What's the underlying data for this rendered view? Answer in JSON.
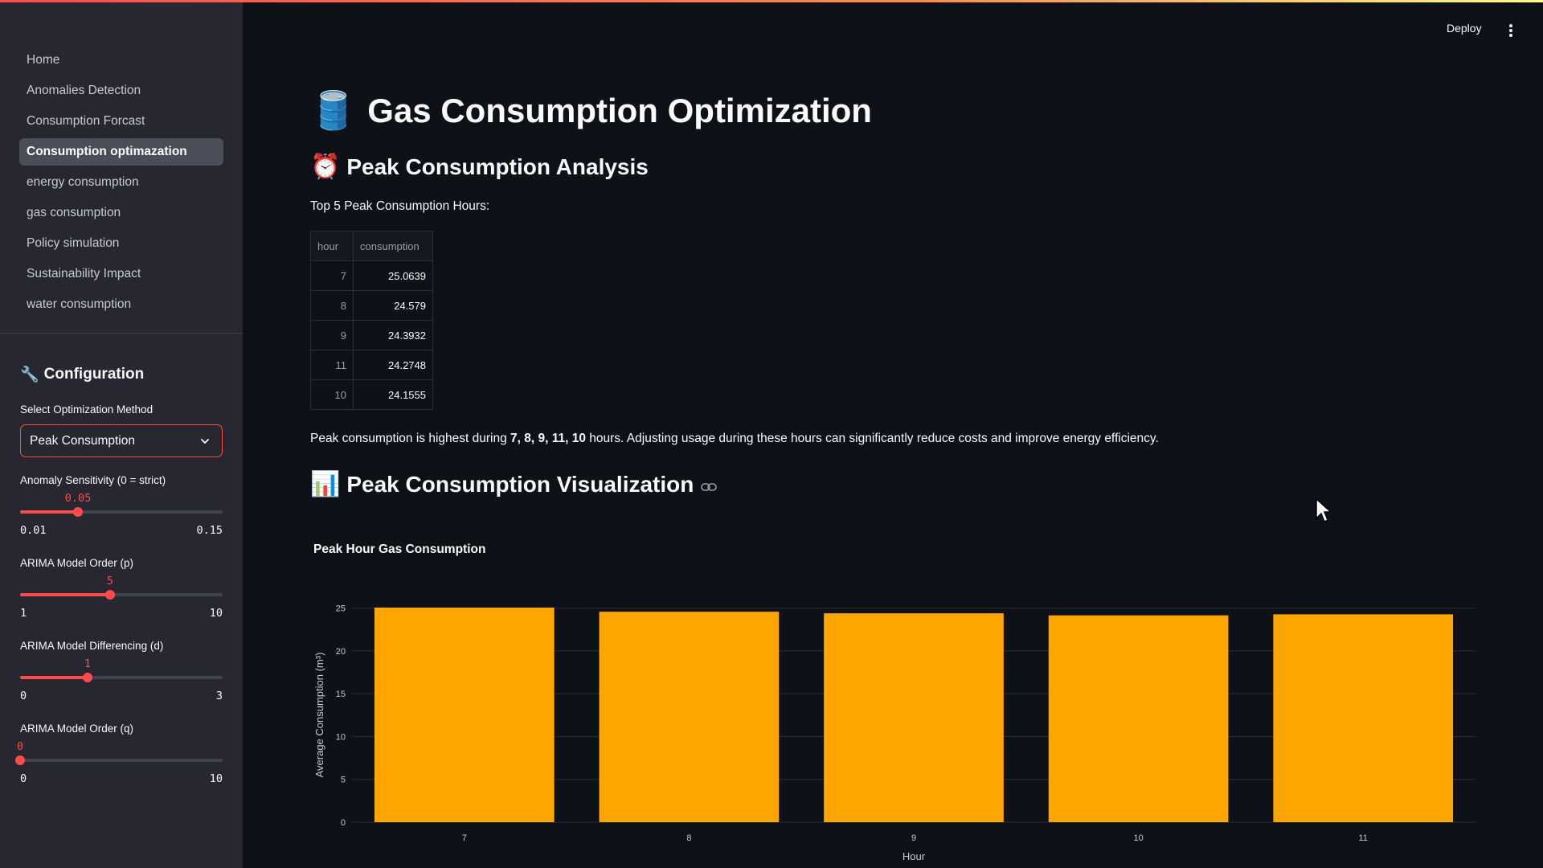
{
  "sidebar": {
    "nav": [
      {
        "label": "Home",
        "active": false
      },
      {
        "label": "Anomalies Detection",
        "active": false
      },
      {
        "label": "Consumption Forcast",
        "active": false
      },
      {
        "label": "Consumption optimazation",
        "active": true
      },
      {
        "label": "energy consumption",
        "active": false
      },
      {
        "label": "gas consumption",
        "active": false
      },
      {
        "label": "Policy simulation",
        "active": false
      },
      {
        "label": "Sustainability Impact",
        "active": false
      },
      {
        "label": "water consumption",
        "active": false
      }
    ],
    "config_title": "Configuration",
    "config_icon": "wrench-icon",
    "method_label": "Select Optimization Method",
    "method_value": "Peak Consumption",
    "sliders": [
      {
        "label": "Anomaly Sensitivity (0 = strict)",
        "value": "0.05",
        "min": "0.01",
        "max": "0.15",
        "fraction": 0.286
      },
      {
        "label": "ARIMA Model Order (p)",
        "value": "5",
        "min": "1",
        "max": "10",
        "fraction": 0.444
      },
      {
        "label": "ARIMA Model Differencing (d)",
        "value": "1",
        "min": "0",
        "max": "3",
        "fraction": 0.333
      },
      {
        "label": "ARIMA Model Order (q)",
        "value": "0",
        "min": "0",
        "max": "10",
        "fraction": 0.0
      }
    ]
  },
  "header": {
    "deploy_label": "Deploy",
    "menu_icon": "kebab-menu-icon"
  },
  "main": {
    "title": "Gas Consumption Optimization",
    "title_icon": "oil-barrel-icon",
    "section1_title": "Peak Consumption Analysis",
    "section1_icon": "alarm-clock-icon",
    "table_caption": "Top 5 Peak Consumption Hours:",
    "table": {
      "columns": [
        "hour",
        "consumption"
      ],
      "rows": [
        {
          "hour": "7",
          "consumption": "25.0639"
        },
        {
          "hour": "8",
          "consumption": "24.579"
        },
        {
          "hour": "9",
          "consumption": "24.3932"
        },
        {
          "hour": "11",
          "consumption": "24.2748"
        },
        {
          "hour": "10",
          "consumption": "24.1555"
        }
      ]
    },
    "summary": {
      "prefix": "Peak consumption is highest during ",
      "hours": "7, 8, 9, 11, 10",
      "suffix": " hours. Adjusting usage during these hours can significantly reduce costs and improve energy efficiency."
    },
    "section2_title": "Peak Consumption Visualization",
    "section2_icon": "bar-chart-icon",
    "anchor_icon": "link-icon"
  },
  "colors": {
    "accent": "#ff4b4b",
    "bar": "#ffa500",
    "background": "#0e1117",
    "sidebar": "#262730"
  },
  "chart_data": {
    "type": "bar",
    "title": "Peak Hour Gas Consumption",
    "xlabel": "Hour",
    "ylabel": "Average Consumption (m³)",
    "categories": [
      "7",
      "8",
      "9",
      "10",
      "11"
    ],
    "values": [
      25.0639,
      24.579,
      24.3932,
      24.1555,
      24.2748
    ],
    "ylim": [
      0,
      25.06
    ],
    "yticks": [
      0,
      5,
      10,
      15,
      20,
      25
    ],
    "grid": true,
    "color": "#ffa500"
  }
}
